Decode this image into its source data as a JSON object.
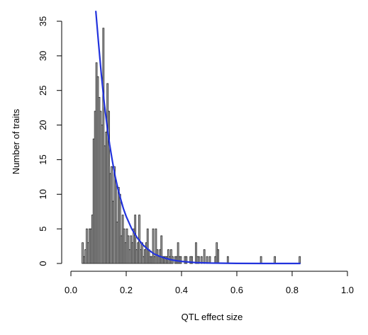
{
  "chart_data": {
    "type": "bar",
    "xlabel": "QTL effect size",
    "ylabel": "Number of traits",
    "xlim": [
      0,
      1
    ],
    "ylim": [
      0,
      36
    ],
    "x_ticks": [
      "0.0",
      "0.2",
      "0.4",
      "0.6",
      "0.8",
      "1.0"
    ],
    "y_ticks": [
      "0",
      "5",
      "10",
      "15",
      "20",
      "25",
      "30",
      "35"
    ],
    "grid": false,
    "legend": "none",
    "bin_width": 0.005,
    "bars": [
      {
        "x": 0.0425,
        "y": 3
      },
      {
        "x": 0.0475,
        "y": 1
      },
      {
        "x": 0.0525,
        "y": 2
      },
      {
        "x": 0.0575,
        "y": 5
      },
      {
        "x": 0.0625,
        "y": 3
      },
      {
        "x": 0.0675,
        "y": 5
      },
      {
        "x": 0.0725,
        "y": 5
      },
      {
        "x": 0.0775,
        "y": 7
      },
      {
        "x": 0.0825,
        "y": 18
      },
      {
        "x": 0.0875,
        "y": 22
      },
      {
        "x": 0.0925,
        "y": 29
      },
      {
        "x": 0.0975,
        "y": 27
      },
      {
        "x": 0.1025,
        "y": 24
      },
      {
        "x": 0.1075,
        "y": 22
      },
      {
        "x": 0.1125,
        "y": 20
      },
      {
        "x": 0.1175,
        "y": 34
      },
      {
        "x": 0.1225,
        "y": 17
      },
      {
        "x": 0.1275,
        "y": 19
      },
      {
        "x": 0.1325,
        "y": 26
      },
      {
        "x": 0.1375,
        "y": 22
      },
      {
        "x": 0.1425,
        "y": 13
      },
      {
        "x": 0.1475,
        "y": 14
      },
      {
        "x": 0.1525,
        "y": 9
      },
      {
        "x": 0.1575,
        "y": 14
      },
      {
        "x": 0.1625,
        "y": 12
      },
      {
        "x": 0.1675,
        "y": 6
      },
      {
        "x": 0.1725,
        "y": 11
      },
      {
        "x": 0.1775,
        "y": 10
      },
      {
        "x": 0.1825,
        "y": 4
      },
      {
        "x": 0.1875,
        "y": 7
      },
      {
        "x": 0.1925,
        "y": 5
      },
      {
        "x": 0.1975,
        "y": 3
      },
      {
        "x": 0.2025,
        "y": 5
      },
      {
        "x": 0.2075,
        "y": 4
      },
      {
        "x": 0.2125,
        "y": 2
      },
      {
        "x": 0.2175,
        "y": 4
      },
      {
        "x": 0.2225,
        "y": 3
      },
      {
        "x": 0.2275,
        "y": 5
      },
      {
        "x": 0.2325,
        "y": 7
      },
      {
        "x": 0.2375,
        "y": 2
      },
      {
        "x": 0.2425,
        "y": 3
      },
      {
        "x": 0.2475,
        "y": 7
      },
      {
        "x": 0.2525,
        "y": 2
      },
      {
        "x": 0.2575,
        "y": 3
      },
      {
        "x": 0.2625,
        "y": 1
      },
      {
        "x": 0.2675,
        "y": 2
      },
      {
        "x": 0.2725,
        "y": 3
      },
      {
        "x": 0.2775,
        "y": 5
      },
      {
        "x": 0.2825,
        "y": 2
      },
      {
        "x": 0.2875,
        "y": 1
      },
      {
        "x": 0.2925,
        "y": 1
      },
      {
        "x": 0.2975,
        "y": 5
      },
      {
        "x": 0.3025,
        "y": 1
      },
      {
        "x": 0.3075,
        "y": 5
      },
      {
        "x": 0.3125,
        "y": 2
      },
      {
        "x": 0.3175,
        "y": 1
      },
      {
        "x": 0.3225,
        "y": 2
      },
      {
        "x": 0.3275,
        "y": 4
      },
      {
        "x": 0.3325,
        "y": 1
      },
      {
        "x": 0.3375,
        "y": 1
      },
      {
        "x": 0.3425,
        "y": 1
      },
      {
        "x": 0.3475,
        "y": 1
      },
      {
        "x": 0.3525,
        "y": 2
      },
      {
        "x": 0.3575,
        "y": 1
      },
      {
        "x": 0.3625,
        "y": 2
      },
      {
        "x": 0.3675,
        "y": 1
      },
      {
        "x": 0.3775,
        "y": 1
      },
      {
        "x": 0.3825,
        "y": 1
      },
      {
        "x": 0.3875,
        "y": 3
      },
      {
        "x": 0.3925,
        "y": 1
      },
      {
        "x": 0.3975,
        "y": 1
      },
      {
        "x": 0.4125,
        "y": 1
      },
      {
        "x": 0.4175,
        "y": 1
      },
      {
        "x": 0.4325,
        "y": 1
      },
      {
        "x": 0.4375,
        "y": 1
      },
      {
        "x": 0.4525,
        "y": 3
      },
      {
        "x": 0.4575,
        "y": 1
      },
      {
        "x": 0.4625,
        "y": 1
      },
      {
        "x": 0.4725,
        "y": 1
      },
      {
        "x": 0.4825,
        "y": 2
      },
      {
        "x": 0.4925,
        "y": 1
      },
      {
        "x": 0.5025,
        "y": 1
      },
      {
        "x": 0.5225,
        "y": 1
      },
      {
        "x": 0.5275,
        "y": 3
      },
      {
        "x": 0.5325,
        "y": 2
      },
      {
        "x": 0.5675,
        "y": 1
      },
      {
        "x": 0.6875,
        "y": 1
      },
      {
        "x": 0.7375,
        "y": 1
      },
      {
        "x": 0.8275,
        "y": 1
      }
    ],
    "curve": {
      "color": "#2233dd",
      "x": [
        0.09,
        0.1,
        0.11,
        0.12,
        0.13,
        0.14,
        0.15,
        0.16,
        0.17,
        0.18,
        0.19,
        0.2,
        0.22,
        0.24,
        0.26,
        0.28,
        0.3,
        0.32,
        0.34,
        0.36,
        0.38,
        0.4,
        0.45,
        0.5,
        0.6,
        0.7,
        0.8,
        0.83
      ],
      "y": [
        36.5,
        31.8,
        27.3,
        23.4,
        20.1,
        17.2,
        14.8,
        12.6,
        10.8,
        9.3,
        7.9,
        6.8,
        5.0,
        3.7,
        2.7,
        2.0,
        1.4,
        1.05,
        0.77,
        0.56,
        0.41,
        0.3,
        0.13,
        0.06,
        0.01,
        0.0,
        0.0,
        0.0
      ]
    },
    "bar_fill": "#b5b5b5",
    "bar_stroke": "#222222"
  }
}
